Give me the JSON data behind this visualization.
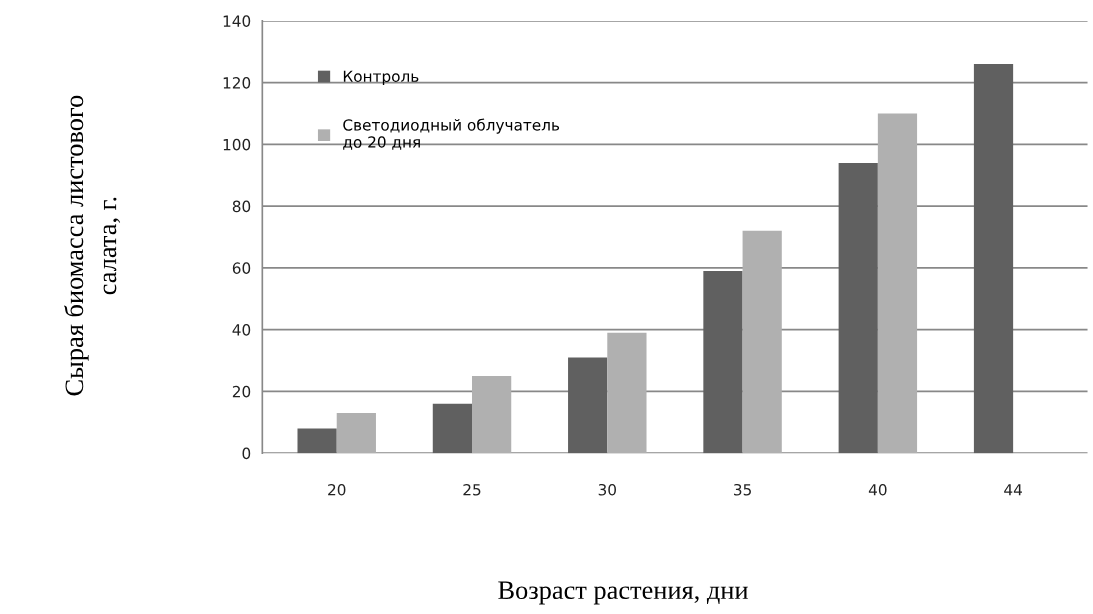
{
  "chart_data": {
    "type": "bar",
    "xlabel": "Возраст растения, дни",
    "ylabel": "Сырая биомасса листового\nсалата, г.",
    "categories": [
      "20",
      "25",
      "30",
      "35",
      "40",
      "44"
    ],
    "series": [
      {
        "name": "Контроль",
        "color": "#606060",
        "values": [
          8,
          16,
          31,
          59,
          94,
          126
        ]
      },
      {
        "name": "Светодиодный облучатель\nдо 20 дня",
        "color": "#b0b0b0",
        "values": [
          13,
          25,
          39,
          72,
          110,
          null
        ]
      }
    ],
    "ylim": [
      0,
      140
    ],
    "yticks": [
      0,
      20,
      40,
      60,
      80,
      100,
      120,
      140
    ],
    "grid": "y",
    "legend": "top left"
  }
}
